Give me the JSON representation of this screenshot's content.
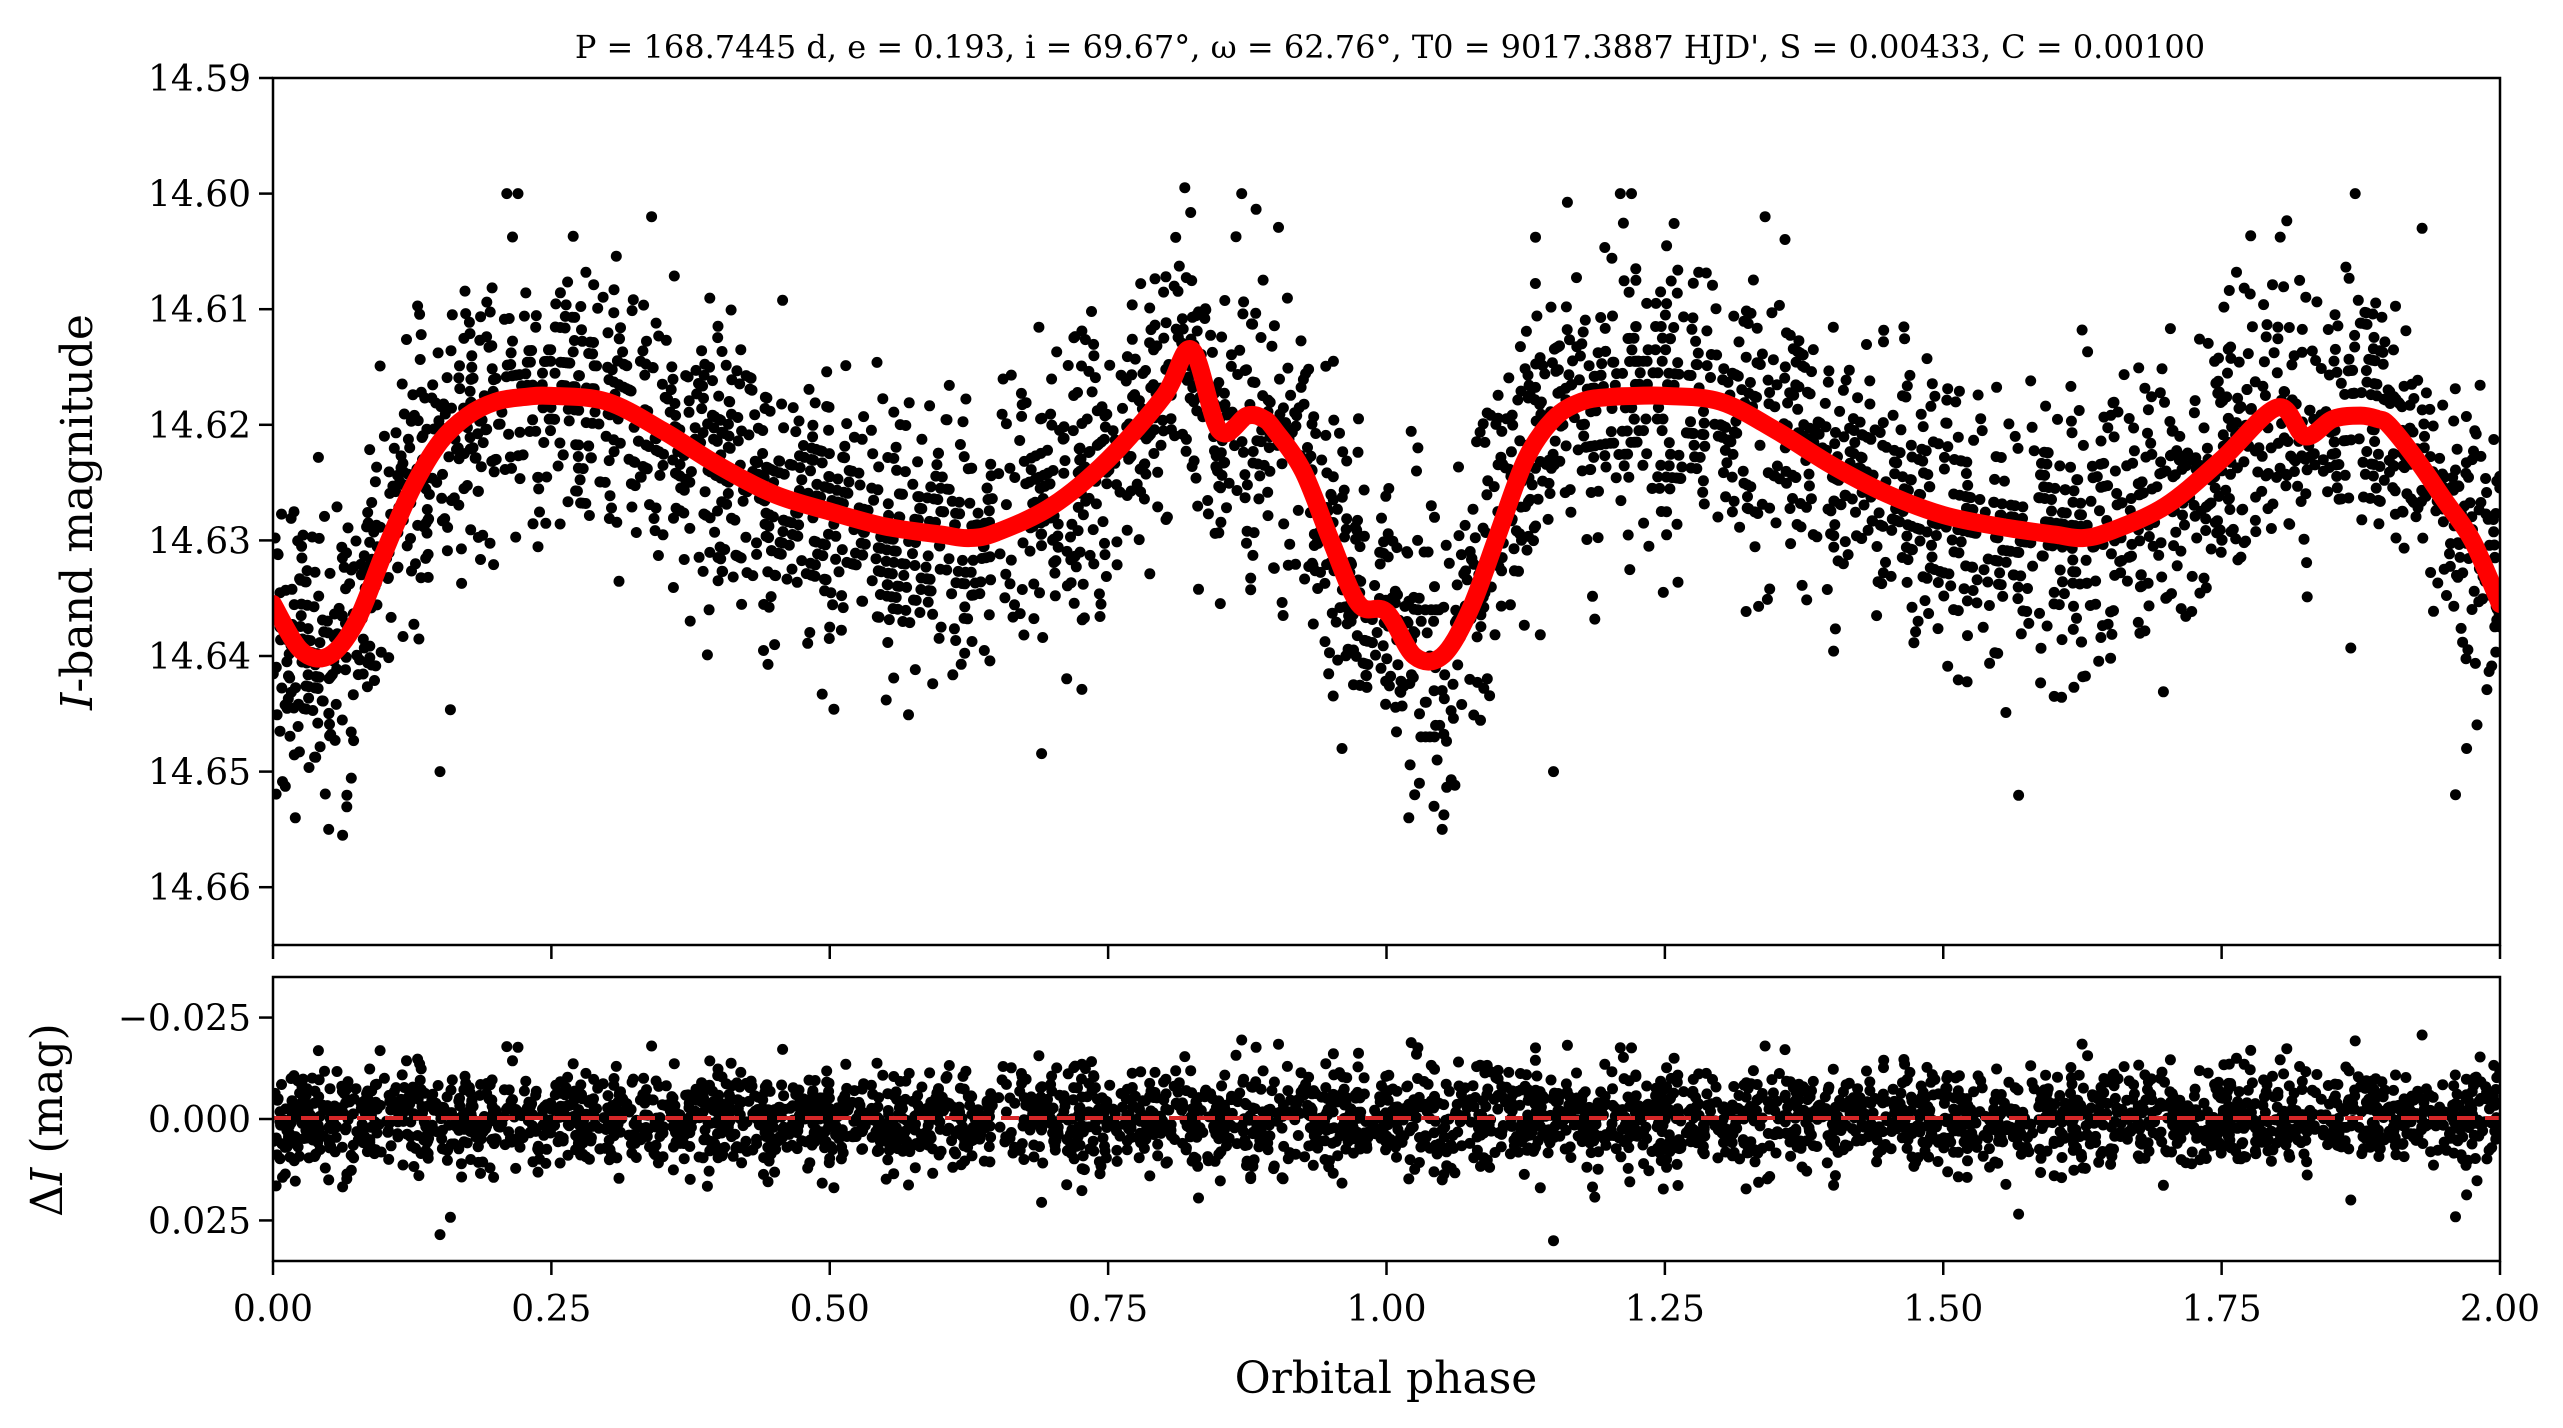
{
  "chart_data": [
    {
      "type": "scatter",
      "panel": "light-curve",
      "title": "P = 168.7445 d, e = 0.193, i = 69.67°, ω = 62.76°, T0 = 9017.3887 HJD', S = 0.00433, C = 0.00100",
      "xlabel": "",
      "ylabel": "I-band magnitude",
      "xlim": [
        0.0,
        2.0
      ],
      "ylim": [
        14.665,
        14.59
      ],
      "y_inverted": true,
      "x_ticks": [
        "0.00",
        "0.25",
        "0.50",
        "0.75",
        "1.00",
        "1.25",
        "1.50",
        "1.75",
        "2.00"
      ],
      "y_ticks": [
        "14.59",
        "14.60",
        "14.61",
        "14.62",
        "14.63",
        "14.64",
        "14.65",
        "14.66"
      ],
      "marker_color": "#000000",
      "model_color": "#ff0000",
      "model": {
        "x": [
          0.0,
          0.025,
          0.05,
          0.075,
          0.1,
          0.125,
          0.15,
          0.175,
          0.2,
          0.225,
          0.25,
          0.3,
          0.35,
          0.4,
          0.45,
          0.5,
          0.55,
          0.6,
          0.625,
          0.65,
          0.7,
          0.75,
          0.8,
          0.825,
          0.85,
          0.875,
          0.89,
          0.9,
          0.925,
          0.95,
          0.975,
          1.0,
          1.025,
          1.05,
          1.075,
          1.1,
          1.125,
          1.15,
          1.175,
          1.2,
          1.225,
          1.25,
          1.3,
          1.35,
          1.4,
          1.45,
          1.5,
          1.55,
          1.6,
          1.625,
          1.65,
          1.7,
          1.75,
          1.8,
          1.825,
          1.85,
          1.875,
          1.89,
          1.9,
          1.925,
          1.95,
          1.975,
          2.0
        ],
        "y": [
          14.6355,
          14.6395,
          14.64,
          14.637,
          14.631,
          14.6255,
          14.6215,
          14.6192,
          14.618,
          14.6176,
          14.6175,
          14.618,
          14.6205,
          14.6235,
          14.626,
          14.6275,
          14.6288,
          14.6295,
          14.6298,
          14.6293,
          14.627,
          14.623,
          14.6175,
          14.6135,
          14.6205,
          14.6192,
          14.6195,
          14.6205,
          14.624,
          14.63,
          14.6355,
          14.6362,
          14.64,
          14.64,
          14.636,
          14.6295,
          14.623,
          14.6195,
          14.618,
          14.6176,
          14.6175,
          14.6175,
          14.618,
          14.6205,
          14.6235,
          14.626,
          14.6278,
          14.6288,
          14.6295,
          14.6298,
          14.6292,
          14.627,
          14.623,
          14.6185,
          14.621,
          14.6195,
          14.6192,
          14.6195,
          14.62,
          14.623,
          14.6265,
          14.63,
          14.6355
        ]
      },
      "scatter_spread_mag": 0.006,
      "scatter_points_per_unit_phase": 1700,
      "outliers": [
        {
          "x": 0.21,
          "y": 14.6
        },
        {
          "x": 0.22,
          "y": 14.6
        },
        {
          "x": 0.87,
          "y": 14.6
        },
        {
          "x": 1.21,
          "y": 14.6
        },
        {
          "x": 1.22,
          "y": 14.6
        },
        {
          "x": 1.87,
          "y": 14.6
        },
        {
          "x": 0.34,
          "y": 14.602
        },
        {
          "x": 1.34,
          "y": 14.602
        },
        {
          "x": 1.93,
          "y": 14.603
        },
        {
          "x": 0.05,
          "y": 14.655
        },
        {
          "x": 1.05,
          "y": 14.655
        },
        {
          "x": 0.02,
          "y": 14.654
        },
        {
          "x": 1.02,
          "y": 14.654
        },
        {
          "x": 1.96,
          "y": 14.652
        },
        {
          "x": 1.97,
          "y": 14.648
        },
        {
          "x": 0.15,
          "y": 14.65
        },
        {
          "x": 1.15,
          "y": 14.65
        },
        {
          "x": 0.96,
          "y": 14.648
        }
      ]
    },
    {
      "type": "scatter",
      "panel": "residuals",
      "title": "",
      "xlabel": "Orbital phase",
      "ylabel": "ΔI (mag)",
      "xlim": [
        0.0,
        2.0
      ],
      "ylim": [
        0.035,
        -0.035
      ],
      "y_inverted": true,
      "x_ticks": [
        "0.00",
        "0.25",
        "0.50",
        "0.75",
        "1.00",
        "1.25",
        "1.50",
        "1.75",
        "2.00"
      ],
      "y_ticks": [
        "−0.025",
        "0.000",
        "0.025"
      ],
      "zero_line_color": "#d62728",
      "marker_color": "#000000",
      "scatter_spread_mag": 0.006
    }
  ]
}
